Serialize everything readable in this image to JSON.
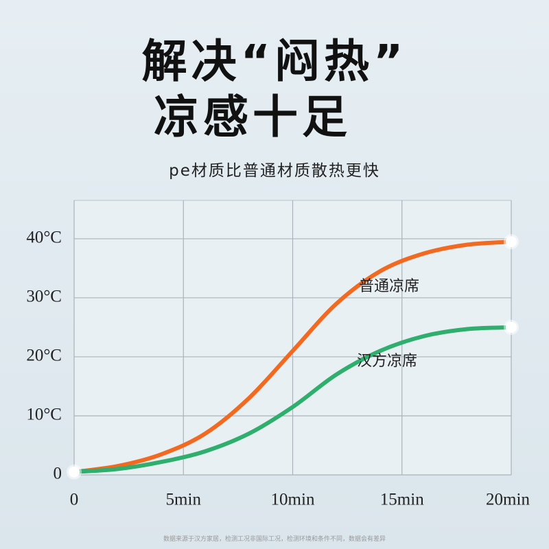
{
  "title_lines": [
    "解决“闷热”",
    "凉感十足"
  ],
  "subtitle": "pe材质比普通材质散热更快",
  "footnote": "数据来源于汉方家居，检测工况非国际工况，检测环境和条件不同，数据会有差异",
  "chart_data": {
    "type": "line",
    "x": [
      0,
      2,
      4,
      6,
      8,
      10,
      12,
      14,
      16,
      18,
      20
    ],
    "series": [
      {
        "name": "普通凉席",
        "color": "#f26a21",
        "values": [
          0.5,
          1.5,
          3.5,
          7,
          13,
          21,
          29,
          34.5,
          37.5,
          39,
          39.5
        ]
      },
      {
        "name": "汉方凉席",
        "color": "#2fae6e",
        "values": [
          0.5,
          1,
          2.2,
          4,
          7,
          11.5,
          17,
          21,
          23.5,
          24.7,
          25
        ]
      }
    ],
    "xlim": [
      0,
      20
    ],
    "xticks": [
      0,
      {
        "value": 5,
        "label": "5min"
      },
      {
        "value": 10,
        "label": "10min"
      },
      {
        "value": 15,
        "label": "15min"
      },
      {
        "value": 20,
        "label": "20min"
      }
    ],
    "ylim": [
      0,
      46.5
    ],
    "yticks": [
      0,
      {
        "value": 10,
        "label": "10°C"
      },
      {
        "value": 20,
        "label": "20°C"
      },
      {
        "value": 30,
        "label": "30°C"
      },
      {
        "value": 40,
        "label": "40°C"
      }
    ],
    "grid": true
  }
}
